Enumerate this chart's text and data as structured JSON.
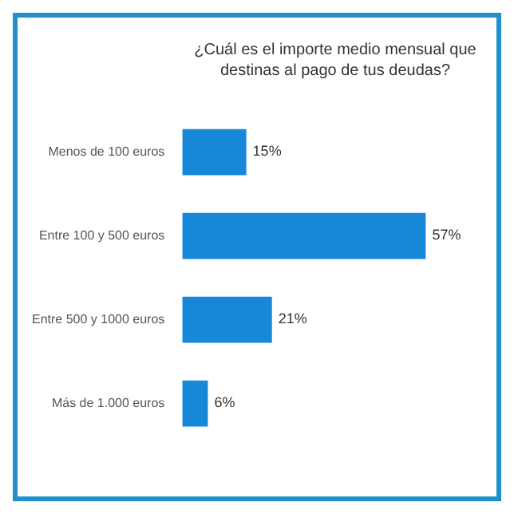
{
  "chart_data": {
    "type": "bar",
    "orientation": "horizontal",
    "title": "¿Cuál es el importe medio mensual que destinas al pago de tus deudas?",
    "categories": [
      "Menos de 100 euros",
      "Entre 100 y 500 euros",
      "Entre 500 y 1000 euros",
      "Más de 1.000 euros"
    ],
    "values": [
      15,
      57,
      21,
      6
    ],
    "value_labels": [
      "15%",
      "57%",
      "21%",
      "6%"
    ],
    "color": "#1787d8"
  }
}
